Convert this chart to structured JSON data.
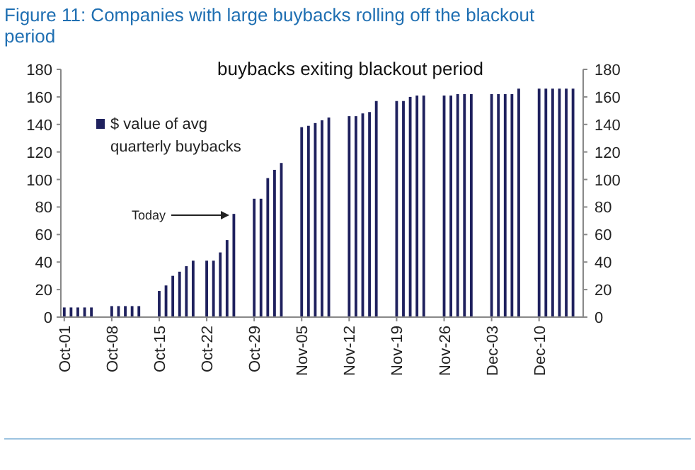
{
  "chart_data": {
    "type": "bar",
    "title": "Figure 11: Companies with large buybacks rolling off the blackout period",
    "subtitle": "buybacks exiting blackout period",
    "categories": [
      "Oct-01",
      null,
      null,
      null,
      null,
      null,
      null,
      "Oct-08",
      null,
      null,
      null,
      null,
      null,
      null,
      "Oct-15",
      null,
      null,
      null,
      null,
      null,
      null,
      "Oct-22",
      null,
      null,
      null,
      null,
      null,
      null,
      "Oct-29",
      null,
      null,
      null,
      null,
      null,
      null,
      "Nov-05",
      null,
      null,
      null,
      null,
      null,
      null,
      "Nov-12",
      null,
      null,
      null,
      null,
      null,
      null,
      "Nov-19",
      null,
      null,
      null,
      null,
      null,
      null,
      "Nov-26",
      null,
      null,
      null,
      null,
      null,
      null,
      "Dec-03",
      null,
      null,
      null,
      null,
      null,
      null,
      "Dec-10",
      null,
      null,
      null,
      null,
      null,
      null
    ],
    "series": [
      {
        "name": "$ value of avg quarterly buybacks",
        "color": "#1f215e",
        "values": [
          7,
          7,
          7,
          7,
          7,
          null,
          null,
          8,
          8,
          8,
          8,
          8,
          null,
          null,
          19,
          23,
          30,
          33,
          37,
          41,
          null,
          41,
          41,
          47,
          56,
          75,
          null,
          null,
          86,
          86,
          101,
          107,
          112,
          null,
          null,
          138,
          139,
          141,
          143,
          145,
          null,
          null,
          146,
          146,
          148,
          149,
          157,
          null,
          null,
          157,
          157,
          160,
          161,
          161,
          null,
          null,
          161,
          161,
          162,
          162,
          162,
          null,
          null,
          162,
          162,
          162,
          162,
          166,
          null,
          null,
          166,
          166,
          166,
          166,
          166,
          166,
          null
        ]
      }
    ],
    "ylim": [
      0,
      180
    ],
    "yticks": [
      0,
      20,
      40,
      60,
      80,
      100,
      120,
      140,
      160,
      180
    ],
    "y2lim": [
      0,
      180
    ],
    "y2ticks": [
      0,
      20,
      40,
      60,
      80,
      100,
      120,
      140,
      160,
      180
    ],
    "legend": "top left",
    "grid": false,
    "annotations": [
      "Today"
    ]
  }
}
